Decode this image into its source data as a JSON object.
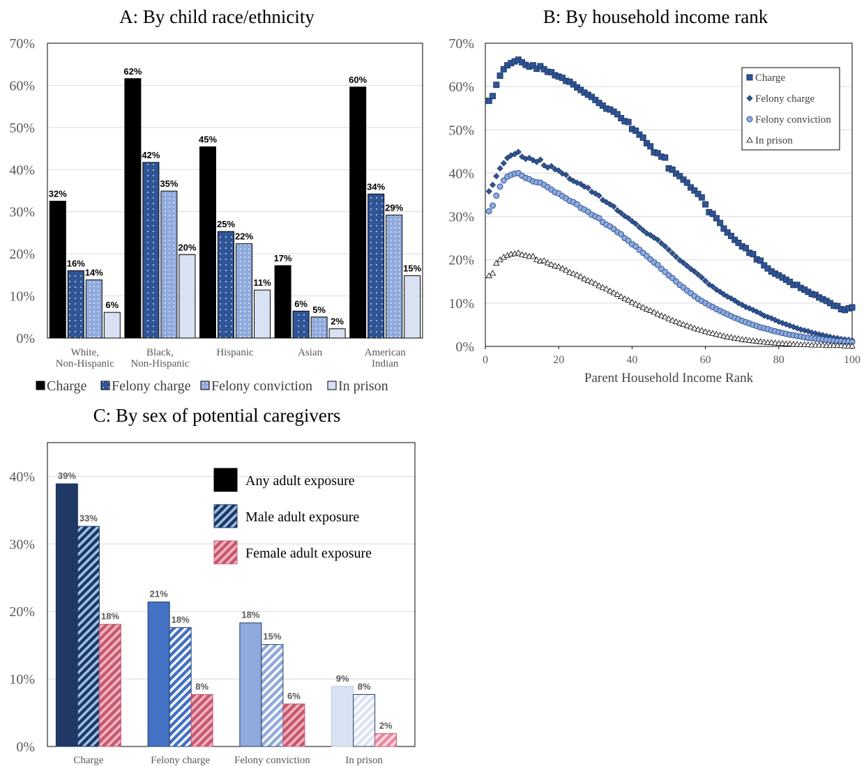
{
  "chart_data": [
    {
      "id": "A",
      "type": "bar",
      "title": "A: By child race/ethnicity",
      "categories": [
        "White,\nNon-Hispanic",
        "Black,\nNon-Hispanic",
        "Hispanic",
        "Asian",
        "American\nIndian"
      ],
      "series": [
        {
          "name": "Charge",
          "values": [
            32.5,
            61.6,
            45.4,
            17.2,
            59.6
          ],
          "labels": [
            "32%",
            "62%",
            "45%",
            "17%",
            "60%"
          ],
          "color": "#000000"
        },
        {
          "name": "Felony charge",
          "values": [
            16.0,
            41.7,
            25.3,
            6.4,
            34.2
          ],
          "labels": [
            "16%",
            "42%",
            "25%",
            "6%",
            "34%"
          ],
          "color": "#2f5597"
        },
        {
          "name": "Felony conviction",
          "values": [
            13.8,
            34.9,
            22.4,
            5.0,
            29.2
          ],
          "labels": [
            "14%",
            "35%",
            "22%",
            "5%",
            "29%"
          ],
          "color": "#8faadc"
        },
        {
          "name": "In prison",
          "values": [
            6.1,
            19.8,
            11.4,
            2.2,
            14.8
          ],
          "labels": [
            "6%",
            "20%",
            "11%",
            "2%",
            "15%"
          ],
          "color": "#dae3f3"
        }
      ],
      "ylim": [
        0,
        70
      ],
      "yticks": [
        0,
        10,
        20,
        30,
        40,
        50,
        60,
        70
      ],
      "ytick_labels": [
        "0%",
        "10%",
        "20%",
        "30%",
        "40%",
        "50%",
        "60%",
        "70%"
      ],
      "grid": true,
      "legend": "bottom"
    },
    {
      "id": "B",
      "type": "scatter",
      "title": "B: By household income rank",
      "xlabel": "Parent Household Income Rank",
      "xlim": [
        0,
        100
      ],
      "xticks": [
        0,
        20,
        40,
        60,
        80,
        100
      ],
      "ylim": [
        0,
        70
      ],
      "yticks": [
        0,
        10,
        20,
        30,
        40,
        50,
        60,
        70
      ],
      "ytick_labels": [
        "0%",
        "10%",
        "20%",
        "30%",
        "40%",
        "50%",
        "60%",
        "70%"
      ],
      "grid": true,
      "legend": "top-right",
      "x": [
        1,
        2,
        3,
        4,
        5,
        6,
        7,
        8,
        9,
        10,
        11,
        12,
        13,
        14,
        15,
        16,
        17,
        18,
        19,
        20,
        21,
        22,
        23,
        24,
        25,
        26,
        27,
        28,
        29,
        30,
        31,
        32,
        33,
        34,
        35,
        36,
        37,
        38,
        39,
        40,
        41,
        42,
        43,
        44,
        45,
        46,
        47,
        48,
        49,
        50,
        51,
        52,
        53,
        54,
        55,
        56,
        57,
        58,
        59,
        60,
        61,
        62,
        63,
        64,
        65,
        66,
        67,
        68,
        69,
        70,
        71,
        72,
        73,
        74,
        75,
        76,
        77,
        78,
        79,
        80,
        81,
        82,
        83,
        84,
        85,
        86,
        87,
        88,
        89,
        90,
        91,
        92,
        93,
        94,
        95,
        96,
        97,
        98,
        99,
        100
      ],
      "series": [
        {
          "name": "Charge",
          "marker": "square",
          "values": [
            56.7,
            57.8,
            60.4,
            62.5,
            64.0,
            64.9,
            65.4,
            65.8,
            66.2,
            65.6,
            65.0,
            64.6,
            64.9,
            64.1,
            64.7,
            64.0,
            63.4,
            63.3,
            62.6,
            62.3,
            62.0,
            61.3,
            61.1,
            60.5,
            59.8,
            59.2,
            58.6,
            58.1,
            57.6,
            56.9,
            56.2,
            55.6,
            54.9,
            54.7,
            54.2,
            53.6,
            52.7,
            52.0,
            51.8,
            50.2,
            49.8,
            48.9,
            48.2,
            46.9,
            46.2,
            44.8,
            44.6,
            43.8,
            43.6,
            41.1,
            40.8,
            39.9,
            39.3,
            38.5,
            37.8,
            36.7,
            36.0,
            35.2,
            34.4,
            32.8,
            31.0,
            30.6,
            29.6,
            28.5,
            27.2,
            26.3,
            25.5,
            24.6,
            23.9,
            23.1,
            22.7,
            21.6,
            21.3,
            20.1,
            19.8,
            18.7,
            18.0,
            17.3,
            16.8,
            16.4,
            15.9,
            15.4,
            14.9,
            14.2,
            14.2,
            13.5,
            13.1,
            12.6,
            12.1,
            11.9,
            11.3,
            10.9,
            10.5,
            10.0,
            9.4,
            9.3,
            8.6,
            8.4,
            8.8,
            9.0
          ]
        },
        {
          "name": "Felony charge",
          "marker": "diamond",
          "values": [
            35.8,
            37.3,
            39.3,
            41.1,
            42.3,
            43.5,
            44.1,
            44.4,
            44.9,
            43.8,
            43.3,
            43.5,
            43.0,
            42.6,
            43.1,
            41.8,
            41.3,
            41.6,
            40.9,
            40.6,
            39.9,
            39.6,
            38.7,
            38.2,
            37.8,
            37.5,
            36.9,
            36.6,
            35.7,
            35.3,
            34.8,
            33.8,
            33.3,
            32.8,
            32.3,
            31.4,
            30.8,
            30.1,
            29.6,
            28.9,
            28.3,
            27.5,
            26.8,
            26.1,
            25.7,
            25.1,
            24.6,
            23.8,
            23.1,
            22.3,
            21.5,
            20.7,
            19.9,
            19.3,
            18.6,
            17.9,
            17.3,
            16.6,
            15.9,
            15.1,
            14.3,
            13.8,
            13.1,
            12.6,
            12.0,
            11.5,
            11.1,
            10.6,
            10.0,
            9.6,
            9.1,
            8.8,
            8.4,
            8.0,
            7.6,
            7.1,
            6.8,
            6.5,
            6.1,
            5.7,
            5.4,
            5.1,
            4.8,
            4.5,
            4.2,
            3.9,
            3.7,
            3.5,
            3.2,
            3.0,
            2.8,
            2.6,
            2.4,
            2.2,
            2.0,
            1.9,
            1.7,
            1.6,
            1.5,
            1.4
          ]
        },
        {
          "name": "Felony conviction",
          "marker": "circle",
          "values": [
            31.2,
            32.5,
            34.8,
            36.9,
            38.3,
            39.2,
            39.6,
            39.9,
            40.0,
            39.4,
            38.9,
            38.6,
            38.1,
            37.9,
            37.8,
            37.3,
            36.8,
            36.2,
            35.6,
            35.3,
            34.7,
            34.2,
            33.6,
            33.3,
            32.8,
            32.0,
            31.6,
            31.1,
            30.4,
            30.0,
            29.6,
            28.7,
            28.1,
            27.7,
            27.1,
            26.4,
            25.9,
            25.0,
            24.4,
            23.6,
            23.1,
            22.3,
            21.6,
            20.9,
            20.1,
            19.4,
            18.8,
            17.9,
            17.2,
            16.4,
            15.8,
            15.0,
            14.2,
            13.6,
            12.9,
            12.3,
            11.6,
            11.0,
            10.5,
            10.0,
            9.5,
            9.1,
            8.6,
            8.2,
            7.8,
            7.4,
            7.0,
            6.6,
            6.3,
            5.9,
            5.6,
            5.3,
            5.0,
            4.7,
            4.4,
            4.2,
            4.0,
            3.7,
            3.5,
            3.3,
            3.1,
            2.9,
            2.7,
            2.6,
            2.4,
            2.3,
            2.1,
            2.0,
            1.9,
            1.8,
            1.7,
            1.6,
            1.5,
            1.4,
            1.3,
            1.2,
            1.2,
            1.1,
            1.1,
            1.0
          ]
        },
        {
          "name": "In prison",
          "marker": "triangle",
          "values": [
            16.3,
            16.9,
            19.2,
            20.0,
            20.6,
            21.0,
            21.3,
            21.4,
            21.6,
            21.2,
            21.0,
            20.8,
            20.8,
            20.0,
            19.7,
            19.8,
            19.3,
            18.9,
            18.6,
            18.4,
            18.0,
            17.6,
            17.1,
            16.8,
            16.5,
            16.1,
            15.6,
            15.2,
            14.9,
            14.5,
            14.0,
            13.6,
            13.3,
            12.8,
            12.4,
            12.0,
            11.5,
            11.0,
            10.7,
            10.2,
            9.8,
            9.4,
            9.0,
            8.6,
            8.3,
            7.9,
            7.5,
            7.1,
            6.8,
            6.4,
            6.0,
            5.7,
            5.4,
            5.1,
            4.8,
            4.5,
            4.2,
            3.9,
            3.7,
            3.4,
            3.2,
            3.0,
            2.8,
            2.6,
            2.4,
            2.2,
            2.1,
            1.9,
            1.8,
            1.6,
            1.5,
            1.4,
            1.3,
            1.2,
            1.1,
            1.0,
            0.9,
            0.9,
            0.8,
            0.7,
            0.7,
            0.6,
            0.6,
            0.5,
            0.5,
            0.4,
            0.4,
            0.4,
            0.3,
            0.3,
            0.3,
            0.3,
            0.2,
            0.2,
            0.2,
            0.2,
            0.2,
            0.1,
            0.1,
            0.1
          ]
        }
      ]
    },
    {
      "id": "C",
      "type": "bar",
      "title": "C: By sex of potential caregivers",
      "categories": [
        "Charge",
        "Felony charge",
        "Felony conviction",
        "In prison"
      ],
      "category_colors": [
        "#1f3864",
        "#4472c4",
        "#8faadc",
        "#dae3f3"
      ],
      "series": [
        {
          "name": "Any adult exposure",
          "pattern": "solid",
          "values": [
            38.9,
            21.4,
            18.3,
            8.9
          ],
          "labels": [
            "39%",
            "21%",
            "18%",
            "9%"
          ]
        },
        {
          "name": "Male adult exposure",
          "pattern": "stripe-blue",
          "values": [
            32.6,
            17.6,
            15.1,
            7.7
          ],
          "labels": [
            "33%",
            "18%",
            "15%",
            "8%"
          ]
        },
        {
          "name": "Female adult exposure",
          "pattern": "stripe-pink",
          "values": [
            18.1,
            7.7,
            6.3,
            1.9
          ],
          "labels": [
            "18%",
            "8%",
            "6%",
            "2%"
          ]
        }
      ],
      "ylim": [
        0,
        45
      ],
      "yticks": [
        0,
        10,
        20,
        30,
        40
      ],
      "ytick_labels": [
        "0%",
        "10%",
        "20%",
        "30%",
        "40%"
      ],
      "grid": true,
      "legend": "top-right"
    }
  ]
}
